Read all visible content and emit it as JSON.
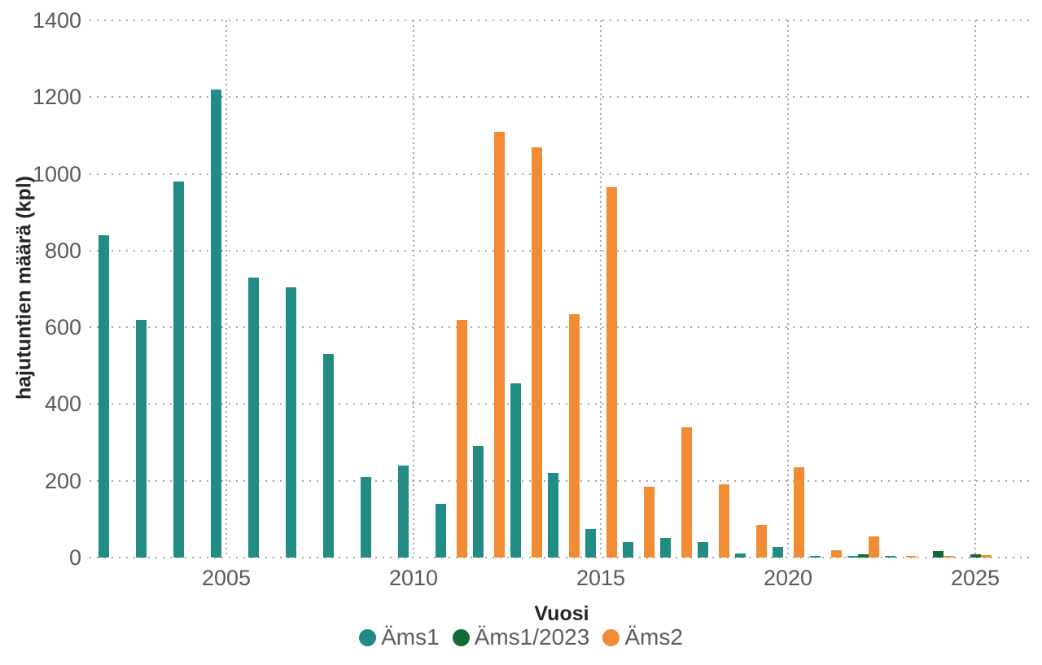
{
  "chart_data": {
    "type": "bar",
    "title": "",
    "xlabel": "Vuosi",
    "ylabel": "hajutuntien määrä (kpl)",
    "ylim": [
      0,
      1400
    ],
    "ytick_step": 200,
    "yticks": [
      0,
      200,
      400,
      600,
      800,
      1000,
      1200,
      1400
    ],
    "xticks": [
      2005,
      2010,
      2015,
      2020,
      2025
    ],
    "grid": "dotted",
    "grid_color": "#a6a6a6",
    "legend_position": "bottom",
    "categories": [
      2002,
      2003,
      2004,
      2005,
      2006,
      2007,
      2008,
      2009,
      2010,
      2011,
      2012,
      2013,
      2014,
      2015,
      2016,
      2017,
      2018,
      2019,
      2020,
      2021,
      2022,
      2023,
      2024,
      2025
    ],
    "series": [
      {
        "name": "Äms1",
        "color": "#218B84",
        "values": [
          840,
          620,
          980,
          1220,
          730,
          705,
          530,
          210,
          240,
          140,
          290,
          455,
          220,
          75,
          40,
          50,
          40,
          10,
          28,
          4,
          5,
          4,
          null,
          null
        ]
      },
      {
        "name": "Äms1/2023",
        "color": "#116B33",
        "values": [
          null,
          null,
          null,
          null,
          null,
          null,
          null,
          null,
          null,
          null,
          null,
          null,
          null,
          null,
          null,
          null,
          null,
          null,
          null,
          null,
          8,
          null,
          16,
          9
        ]
      },
      {
        "name": "Äms2",
        "color": "#F18C35",
        "values": [
          null,
          null,
          null,
          null,
          null,
          null,
          null,
          null,
          null,
          620,
          1110,
          1070,
          635,
          965,
          185,
          340,
          190,
          85,
          235,
          20,
          55,
          5,
          4,
          6
        ]
      }
    ]
  },
  "legend": {
    "items": [
      {
        "label": "Äms1",
        "color": "#218B84"
      },
      {
        "label": "Äms1/2023",
        "color": "#116B33"
      },
      {
        "label": "Äms2",
        "color": "#F18C35"
      }
    ]
  },
  "axis_text": {
    "y_title": "hajutuntien määrä (kpl)",
    "x_title": "Vuosi"
  }
}
